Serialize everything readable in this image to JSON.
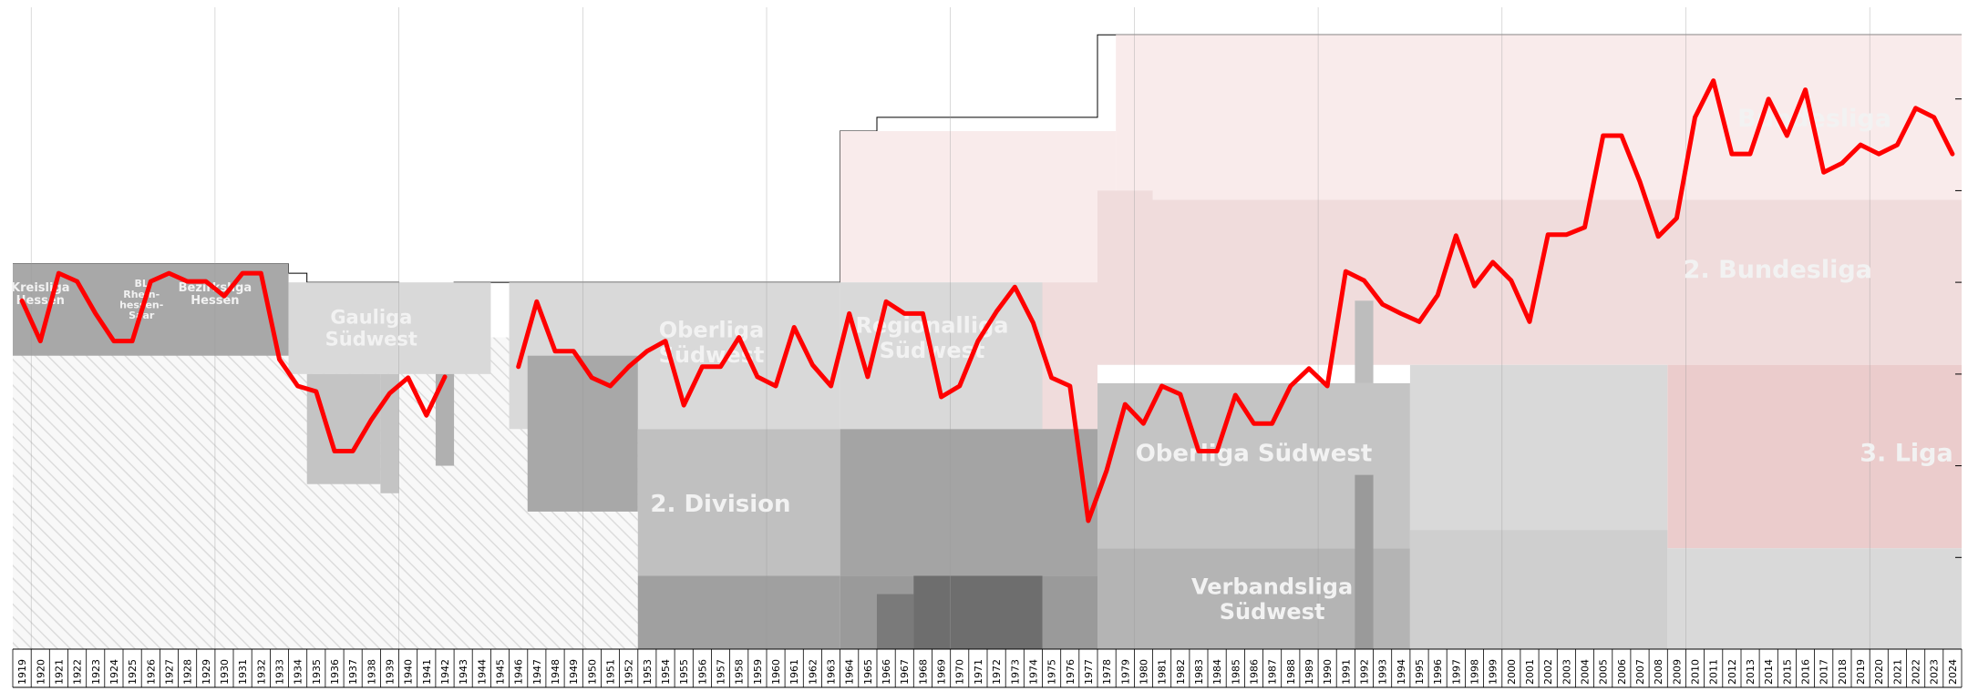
{
  "chart_data": {
    "type": "line",
    "title": "",
    "xlabel": "",
    "ylabel": "",
    "x": [
      1919,
      1920,
      1921,
      1922,
      1923,
      1924,
      1925,
      1926,
      1927,
      1928,
      1929,
      1930,
      1931,
      1932,
      1933,
      1934,
      1935,
      1936,
      1937,
      1938,
      1939,
      1940,
      1941,
      1942,
      1943,
      1944,
      1945,
      1946,
      1947,
      1948,
      1949,
      1950,
      1951,
      1952,
      1953,
      1954,
      1955,
      1956,
      1957,
      1958,
      1959,
      1960,
      1961,
      1962,
      1963,
      1964,
      1965,
      1966,
      1967,
      1968,
      1969,
      1970,
      1971,
      1972,
      1973,
      1974,
      1975,
      1976,
      1977,
      1978,
      1979,
      1980,
      1981,
      1982,
      1983,
      1984,
      1985,
      1986,
      1987,
      1988,
      1989,
      1990,
      1991,
      1992,
      1993,
      1994,
      1995,
      1996,
      1997,
      1998,
      1999,
      2000,
      2001,
      2002,
      2003,
      2004,
      2005,
      2006,
      2007,
      2008,
      2009,
      2010,
      2011,
      2012,
      2013,
      2014,
      2015,
      2016,
      2017,
      2018,
      2019,
      2020,
      2021,
      2022,
      2023,
      2024
    ],
    "x_tick_labels": [
      "1919",
      "1920",
      "1921",
      "1922",
      "1923",
      "1924",
      "1925",
      "1926",
      "1927",
      "1928",
      "1929",
      "1930",
      "1931",
      "1932",
      "1933",
      "1934",
      "1935",
      "1936",
      "1937",
      "1938",
      "1939",
      "1940",
      "1941",
      "1942",
      "1943",
      "1944",
      "1945",
      "1946",
      "1947",
      "1948",
      "1949",
      "1950",
      "1951",
      "1952",
      "1953",
      "1954",
      "1955",
      "1956",
      "1957",
      "1958",
      "1959",
      "1960",
      "1961",
      "1962",
      "1963",
      "1964",
      "1965",
      "1966",
      "1967",
      "1968",
      "1969",
      "1970",
      "1971",
      "1972",
      "1973",
      "1974",
      "1975",
      "1976",
      "1977",
      "1978",
      "1979",
      "1980",
      "1981",
      "1982",
      "1983",
      "1984",
      "1985",
      "1986",
      "1987",
      "1988",
      "1989",
      "1990",
      "1991",
      "1992",
      "1993",
      "1994",
      "1995",
      "1996",
      "1997",
      "1998",
      "1999",
      "2000",
      "2001",
      "2002",
      "2003",
      "2004",
      "2005",
      "2006",
      "2007",
      "2008",
      "2009",
      "2010",
      "2011",
      "2012",
      "2013",
      "2014",
      "2015",
      "2016",
      "2017",
      "2018",
      "2019",
      "2020",
      "2021",
      "2022",
      "2023",
      "2024"
    ],
    "ylim": [
      0,
      70
    ],
    "y_inverted": true,
    "grid": true,
    "series": [
      {
        "color": "#ff0000",
        "values": [
          38.0,
          33.6,
          41.0,
          40.1,
          36.6,
          33.6,
          33.6,
          40.1,
          41.0,
          40.1,
          40.1,
          38.5,
          41.0,
          41.0,
          31.6,
          28.7,
          28.1,
          21.6,
          21.6,
          25.0,
          27.9,
          29.6,
          25.5,
          29.7,
          null,
          null,
          null,
          30.8,
          37.9,
          32.5,
          32.5,
          29.6,
          28.7,
          30.8,
          32.5,
          33.6,
          26.6,
          30.8,
          30.8,
          34.0,
          29.7,
          28.7,
          35.1,
          31.0,
          28.7,
          36.6,
          29.7,
          37.9,
          36.6,
          36.6,
          27.5,
          28.7,
          33.6,
          36.8,
          39.5,
          35.6,
          29.6,
          28.7,
          14.0,
          19.5,
          26.7,
          24.6,
          28.7,
          27.8,
          21.6,
          21.6,
          27.7,
          24.6,
          24.6,
          28.7,
          30.6,
          28.7,
          41.2,
          40.2,
          37.6,
          36.6,
          35.7,
          38.6,
          45.1,
          39.6,
          42.2,
          40.2,
          35.7,
          45.2,
          45.2,
          46.0,
          56.0,
          56.0,
          51.0,
          45.0,
          47.0,
          58.0,
          62.0,
          54.0,
          54.0,
          60.0,
          56.0,
          61.0,
          52.0,
          53.0,
          55.0,
          54.0,
          55.0,
          59.0,
          58.0,
          54.0
        ]
      }
    ],
    "league_bands": [
      {
        "name": "Bundesliga",
        "label": "Bundesliga",
        "color": "#f9ebeb"
      },
      {
        "name": "2. Bundesliga",
        "label": "2. Bundesliga",
        "color": "#f0dcdc"
      },
      {
        "name": "3. Liga",
        "label": "3. Liga",
        "color": "#ebcccc"
      },
      {
        "name": "Kreisliga Hessen",
        "label": "Kreisliga Hessen",
        "color": "#a8a8a8"
      },
      {
        "name": "BL Rheinhessen-Saar",
        "label": "BL Rhein- hessen- Saar",
        "color": "#a8a8a8"
      },
      {
        "name": "Bezirksliga Hessen",
        "label": "Bezirksliga Hessen",
        "color": "#a8a8a8"
      },
      {
        "name": "Gauliga Südwest",
        "label": "Gauliga Südwest",
        "color": "#d9d9d9"
      },
      {
        "name": "Oberliga Südwest (1946)",
        "label": "Oberliga Südwest",
        "color": "#d9d9d9"
      },
      {
        "name": "Regionalliga Südwest",
        "label": "Regionalliga Südwest",
        "color": "#d9d9d9"
      },
      {
        "name": "2. Division",
        "label": "2. Division",
        "color": "#c0c0c0"
      },
      {
        "name": "Oberliga Südwest (1978)",
        "label": "Oberliga Südwest",
        "color": "#c4c4c4"
      },
      {
        "name": "Verbandsliga Südwest",
        "label": "Verbandsliga Südwest",
        "color": "#b4b4b4"
      }
    ]
  }
}
